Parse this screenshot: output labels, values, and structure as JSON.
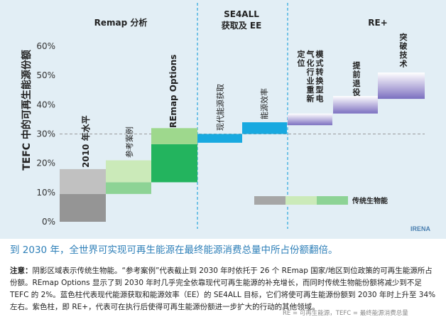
{
  "chart_data": {
    "type": "bar",
    "title": "",
    "ylabel": "TEFC 中的可再生能源份额",
    "ylim": [
      0,
      65
    ],
    "yticks": [
      "0%",
      "10%",
      "20%",
      "30%",
      "40%",
      "50%",
      "60%"
    ],
    "reference_line": 30,
    "groups": [
      {
        "title": "Remap 分析"
      },
      {
        "title": "SE4ALL 获取及 EE"
      },
      {
        "title": "RE+"
      }
    ],
    "bars": [
      {
        "label": "2010 年水平",
        "group": "Remap 分析",
        "segments": [
          {
            "from": 0,
            "to": 9.5,
            "color": "#959595",
            "kind": "traditional"
          },
          {
            "from": 9.5,
            "to": 18,
            "color": "#c1c1c1",
            "kind": "modern"
          }
        ]
      },
      {
        "label": "参考案例",
        "group": "Remap 分析",
        "segments": [
          {
            "from": 9.5,
            "to": 13.5,
            "color": "#8dd395",
            "kind": "traditional"
          },
          {
            "from": 13.5,
            "to": 21,
            "color": "#cbeab9",
            "kind": "modern"
          }
        ]
      },
      {
        "label": "REmap Options",
        "group": "Remap 分析",
        "segments": [
          {
            "from": 13.5,
            "to": 26.5,
            "color": "#23b45e",
            "kind": "modern"
          },
          {
            "from": 26.5,
            "to": 32,
            "color": "#9ed88d",
            "kind": "traditional"
          }
        ]
      },
      {
        "label": "现代能源获取",
        "group": "SE4ALL 获取及 EE",
        "segments": [
          {
            "from": 27,
            "to": 30,
            "color": "#18a9e0",
            "kind": "modern"
          }
        ]
      },
      {
        "label": "能源效率",
        "group": "SE4ALL 获取及 EE",
        "segments": [
          {
            "from": 30,
            "to": 34,
            "color": "#18a9e0",
            "kind": "modern"
          }
        ]
      },
      {
        "label": "模式转换型电气化行业重新定位",
        "group": "RE+",
        "segments": [
          {
            "from": 33,
            "to": 37,
            "color": "gradient-purple",
            "kind": "modern"
          }
        ]
      },
      {
        "label": "提前退役",
        "group": "RE+",
        "segments": [
          {
            "from": 37,
            "to": 43,
            "color": "gradient-purple",
            "kind": "modern"
          }
        ]
      },
      {
        "label": "突破技术",
        "group": "RE+",
        "segments": [
          {
            "from": 42,
            "to": 51,
            "color": "gradient-purple",
            "kind": "modern"
          }
        ]
      }
    ],
    "legend": {
      "label": "传统生物能",
      "swatches": [
        "#a6a6a6",
        "#cbeab9",
        "#8dd395"
      ]
    },
    "brand": "IRENA"
  },
  "caption": "到 2030 年，全世界可实现可再生能源在最终能源消费总量中所占份额翻倍。",
  "note": {
    "label": "注意：",
    "text": "阴影区域表示传统生物能。“参考案例”代表截止到 2030 年时依托于 26 个 REmap 国家/地区到位政策的可再生能源所占份额。REmap Options 显示了到 2030 年时几乎完全依靠现代可再生能源的补充增长，而同时传统生物能份额将减少到不足 TEFC 的 2%。蓝色柱代表现代能源获取和能源效率（EE）的 SE4ALL 目标，它们将使可再生能源份额到 2030 年时上升至 34% 左右。紫色柱，即 RE+，代表可在执行后使得可再生能源份额进一步扩大的行动的其他领域。"
  },
  "footer": "RE = 可再生能源，TEFC = 最终能源消费总量"
}
